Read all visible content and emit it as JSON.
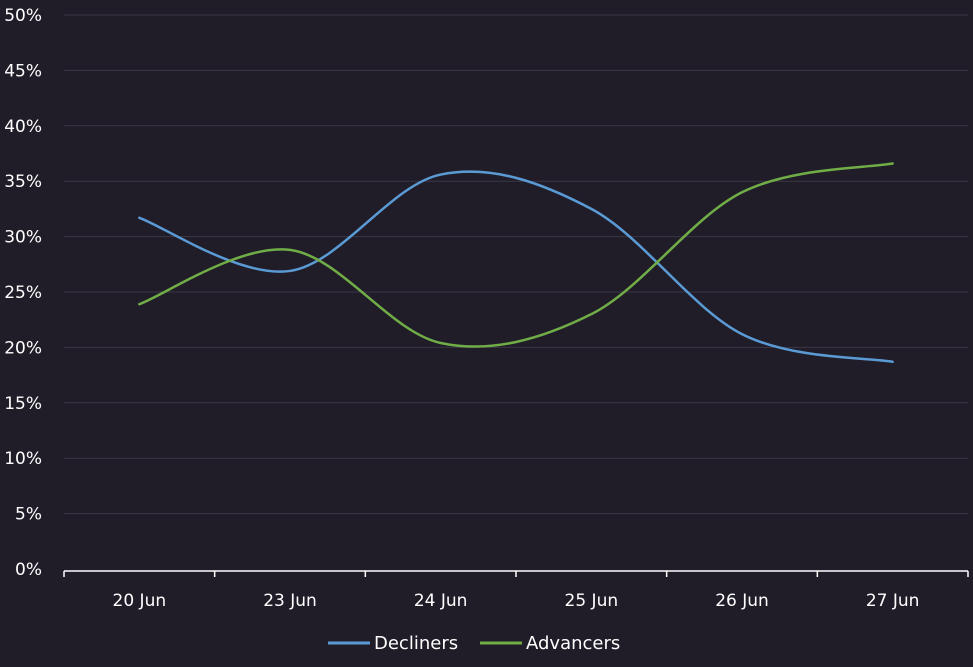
{
  "chart_data": {
    "type": "line",
    "categories": [
      "20 Jun",
      "23 Jun",
      "24 Jun",
      "25 Jun",
      "26 Jun",
      "27 Jun"
    ],
    "series": [
      {
        "name": "Decliners",
        "color": "#5b9bd5",
        "values": [
          31.7,
          26.9,
          35.6,
          32.5,
          21.2,
          18.7
        ]
      },
      {
        "name": "Advancers",
        "color": "#70ad47",
        "values": [
          23.9,
          28.8,
          20.4,
          23.0,
          34.0,
          36.6
        ]
      }
    ],
    "y_ticks": [
      "0%",
      "5%",
      "10%",
      "15%",
      "20%",
      "25%",
      "30%",
      "35%",
      "40%",
      "45%",
      "50%"
    ],
    "ylim": [
      0,
      50
    ],
    "grid": true,
    "legend_position": "bottom",
    "smooth": true
  }
}
